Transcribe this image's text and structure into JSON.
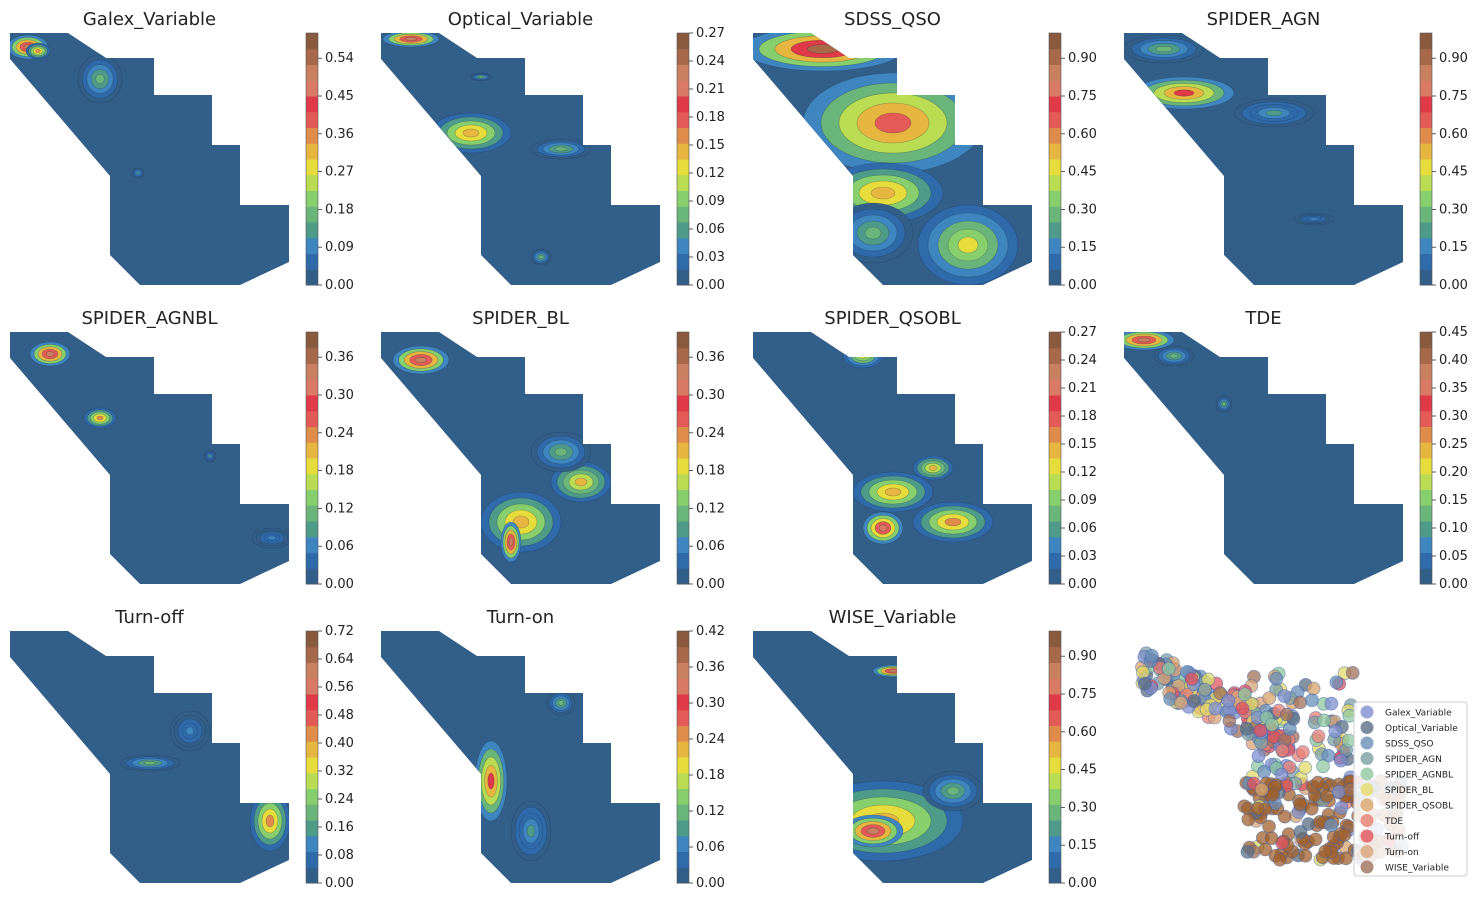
{
  "colors": {
    "bg": "#ffffff",
    "outside": "#ffffff",
    "low": "#325f8a"
  },
  "chart_data": [
    {
      "type": "heatmap",
      "title": "Galex_Variable",
      "colorbar_ticks": [
        "0.00",
        "0.09",
        "0.18",
        "0.27",
        "0.36",
        "0.45",
        "0.54"
      ],
      "vmax": 0.6
    },
    {
      "type": "heatmap",
      "title": "Optical_Variable",
      "colorbar_ticks": [
        "0.00",
        "0.03",
        "0.06",
        "0.09",
        "0.12",
        "0.15",
        "0.18",
        "0.21",
        "0.24",
        "0.27"
      ],
      "vmax": 0.27
    },
    {
      "type": "heatmap",
      "title": "SDSS_QSO",
      "colorbar_ticks": [
        "0.00",
        "0.15",
        "0.30",
        "0.45",
        "0.60",
        "0.75",
        "0.90"
      ],
      "vmax": 1.0
    },
    {
      "type": "heatmap",
      "title": "SPIDER_AGN",
      "colorbar_ticks": [
        "0.00",
        "0.15",
        "0.30",
        "0.45",
        "0.60",
        "0.75",
        "0.90"
      ],
      "vmax": 1.0
    },
    {
      "type": "heatmap",
      "title": "SPIDER_AGNBL",
      "colorbar_ticks": [
        "0.00",
        "0.06",
        "0.12",
        "0.18",
        "0.24",
        "0.30",
        "0.36"
      ],
      "vmax": 0.4
    },
    {
      "type": "heatmap",
      "title": "SPIDER_BL",
      "colorbar_ticks": [
        "0.00",
        "0.06",
        "0.12",
        "0.18",
        "0.24",
        "0.30",
        "0.36"
      ],
      "vmax": 0.4
    },
    {
      "type": "heatmap",
      "title": "SPIDER_QSOBL",
      "colorbar_ticks": [
        "0.00",
        "0.03",
        "0.06",
        "0.09",
        "0.12",
        "0.15",
        "0.18",
        "0.21",
        "0.24",
        "0.27"
      ],
      "vmax": 0.27
    },
    {
      "type": "heatmap",
      "title": "TDE",
      "colorbar_ticks": [
        "0.00",
        "0.05",
        "0.10",
        "0.15",
        "0.20",
        "0.25",
        "0.30",
        "0.35",
        "0.40",
        "0.45"
      ],
      "vmax": 0.45
    },
    {
      "type": "heatmap",
      "title": "Turn-off",
      "colorbar_ticks": [
        "0.00",
        "0.08",
        "0.16",
        "0.24",
        "0.32",
        "0.40",
        "0.48",
        "0.56",
        "0.64",
        "0.72"
      ],
      "vmax": 0.72
    },
    {
      "type": "heatmap",
      "title": "Turn-on",
      "colorbar_ticks": [
        "0.00",
        "0.06",
        "0.12",
        "0.18",
        "0.24",
        "0.30",
        "0.36",
        "0.42"
      ],
      "vmax": 0.42
    },
    {
      "type": "heatmap",
      "title": "WISE_Variable",
      "colorbar_ticks": [
        "0.00",
        "0.15",
        "0.30",
        "0.45",
        "0.60",
        "0.75",
        "0.90"
      ],
      "vmax": 1.0
    },
    {
      "type": "scatter",
      "title": "",
      "legend_position": "right",
      "legend": [
        {
          "name": "Galex_Variable",
          "color": "#7f8fce"
        },
        {
          "name": "Optical_Variable",
          "color": "#5b6f86"
        },
        {
          "name": "SDSS_QSO",
          "color": "#6a8fb8"
        },
        {
          "name": "SPIDER_AGN",
          "color": "#7d9fa1"
        },
        {
          "name": "SPIDER_AGNBL",
          "color": "#8fc8a0"
        },
        {
          "name": "SPIDER_BL",
          "color": "#e3d96a"
        },
        {
          "name": "SPIDER_QSOBL",
          "color": "#d9a46c"
        },
        {
          "name": "TDE",
          "color": "#e88074"
        },
        {
          "name": "Turn-off",
          "color": "#e0535e"
        },
        {
          "name": "Turn-on",
          "color": "#d9a47a"
        },
        {
          "name": "WISE_Variable",
          "color": "#a0705a"
        }
      ]
    }
  ]
}
